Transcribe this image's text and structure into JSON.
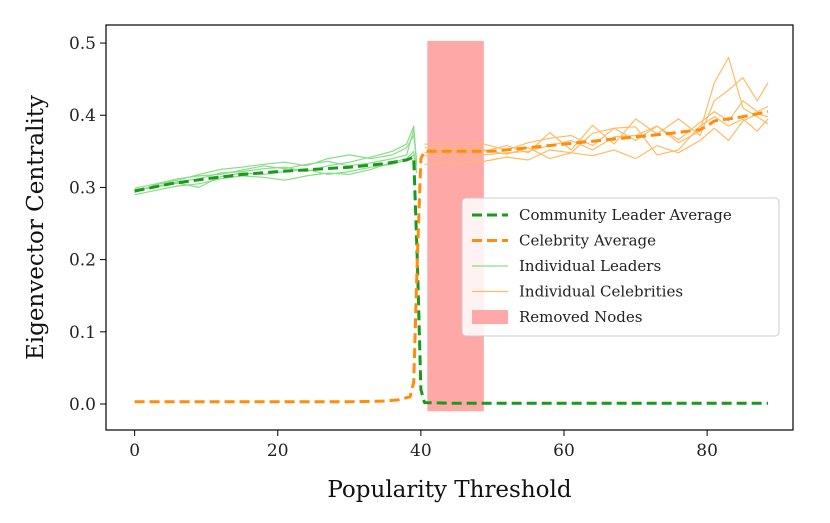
{
  "chart_data": {
    "type": "line",
    "title": "",
    "xlabel": "Popularity Threshold",
    "ylabel": "Eigenvector Centrality",
    "xlim": [
      -4,
      92
    ],
    "ylim": [
      -0.036,
      0.525
    ],
    "xticks": [
      0,
      20,
      40,
      60,
      80
    ],
    "yticks": [
      0.0,
      0.1,
      0.2,
      0.3,
      0.4,
      0.5
    ],
    "xtick_labels": [
      "0",
      "20",
      "40",
      "60",
      "80"
    ],
    "ytick_labels": [
      "0.0",
      "0.1",
      "0.2",
      "0.3",
      "0.4",
      "0.5"
    ],
    "grid": false,
    "legend_position": "center-right",
    "removed_region": {
      "name": "Removed Nodes",
      "x0": 40.9,
      "x1": 48.8,
      "y0": -0.01,
      "y1": 0.503,
      "color": "#ffa8a8"
    },
    "series": [
      {
        "name": "Community Leader Average",
        "style": "dashed",
        "color": "#1a9a1a",
        "width": 3,
        "points": [
          [
            0,
            0.295
          ],
          [
            5,
            0.305
          ],
          [
            10,
            0.312
          ],
          [
            15,
            0.318
          ],
          [
            20,
            0.322
          ],
          [
            25,
            0.325
          ],
          [
            30,
            0.328
          ],
          [
            35,
            0.333
          ],
          [
            38,
            0.338
          ],
          [
            39,
            0.342
          ],
          [
            39.5,
            0.2
          ],
          [
            40,
            0.02
          ],
          [
            40.5,
            0.002
          ],
          [
            45,
            0.001
          ],
          [
            60,
            0.001
          ],
          [
            80,
            0.001
          ],
          [
            88.5,
            0.001
          ]
        ]
      },
      {
        "name": "Celebrity Average",
        "style": "dashed",
        "color": "#ff8c0a",
        "width": 3,
        "points": [
          [
            0,
            0.003
          ],
          [
            10,
            0.003
          ],
          [
            20,
            0.003
          ],
          [
            30,
            0.003
          ],
          [
            35,
            0.004
          ],
          [
            37,
            0.006
          ],
          [
            38.5,
            0.01
          ],
          [
            39,
            0.03
          ],
          [
            39.5,
            0.2
          ],
          [
            40,
            0.34
          ],
          [
            40.5,
            0.35
          ],
          [
            45,
            0.35
          ],
          [
            50,
            0.35
          ],
          [
            55,
            0.355
          ],
          [
            60,
            0.36
          ],
          [
            65,
            0.365
          ],
          [
            70,
            0.37
          ],
          [
            75,
            0.375
          ],
          [
            79,
            0.38
          ],
          [
            80,
            0.385
          ],
          [
            81,
            0.392
          ],
          [
            85,
            0.398
          ],
          [
            88.5,
            0.405
          ]
        ]
      },
      {
        "name": "Individual Leaders",
        "style": "solid",
        "color": "#88dd88",
        "width": 1.2,
        "lines": [
          [
            [
              0,
              0.297
            ],
            [
              3,
              0.3
            ],
            [
              6,
              0.308
            ],
            [
              9,
              0.312
            ],
            [
              12,
              0.32
            ],
            [
              15,
              0.322
            ],
            [
              18,
              0.326
            ],
            [
              21,
              0.328
            ],
            [
              24,
              0.322
            ],
            [
              27,
              0.33
            ],
            [
              30,
              0.335
            ],
            [
              33,
              0.342
            ],
            [
              36,
              0.35
            ],
            [
              38,
              0.36
            ],
            [
              39,
              0.385
            ],
            [
              39.4,
              0.33
            ]
          ],
          [
            [
              0,
              0.293
            ],
            [
              3,
              0.304
            ],
            [
              6,
              0.31
            ],
            [
              9,
              0.318
            ],
            [
              12,
              0.325
            ],
            [
              15,
              0.328
            ],
            [
              18,
              0.332
            ],
            [
              21,
              0.335
            ],
            [
              24,
              0.33
            ],
            [
              27,
              0.34
            ],
            [
              30,
              0.345
            ],
            [
              33,
              0.34
            ],
            [
              36,
              0.345
            ],
            [
              38,
              0.355
            ],
            [
              39,
              0.372
            ],
            [
              39.4,
              0.34
            ]
          ],
          [
            [
              0,
              0.29
            ],
            [
              3,
              0.296
            ],
            [
              6,
              0.302
            ],
            [
              9,
              0.305
            ],
            [
              12,
              0.312
            ],
            [
              15,
              0.316
            ],
            [
              18,
              0.314
            ],
            [
              21,
              0.31
            ],
            [
              24,
              0.316
            ],
            [
              27,
              0.32
            ],
            [
              30,
              0.318
            ],
            [
              33,
              0.325
            ],
            [
              36,
              0.335
            ],
            [
              38,
              0.34
            ],
            [
              39,
              0.35
            ],
            [
              39.4,
              0.32
            ]
          ],
          [
            [
              0,
              0.296
            ],
            [
              3,
              0.302
            ],
            [
              6,
              0.306
            ],
            [
              9,
              0.3
            ],
            [
              12,
              0.315
            ],
            [
              15,
              0.32
            ],
            [
              18,
              0.318
            ],
            [
              21,
              0.322
            ],
            [
              24,
              0.325
            ],
            [
              27,
              0.318
            ],
            [
              30,
              0.322
            ],
            [
              33,
              0.328
            ],
            [
              36,
              0.332
            ],
            [
              38,
              0.338
            ],
            [
              39,
              0.345
            ],
            [
              39.4,
              0.325
            ]
          ],
          [
            [
              0,
              0.299
            ],
            [
              3,
              0.305
            ],
            [
              6,
              0.312
            ],
            [
              9,
              0.316
            ],
            [
              12,
              0.318
            ],
            [
              15,
              0.324
            ],
            [
              18,
              0.33
            ],
            [
              21,
              0.326
            ],
            [
              24,
              0.332
            ],
            [
              27,
              0.336
            ],
            [
              30,
              0.33
            ],
            [
              33,
              0.334
            ],
            [
              36,
              0.34
            ],
            [
              38,
              0.345
            ],
            [
              39,
              0.38
            ],
            [
              39.4,
              0.335
            ]
          ]
        ]
      },
      {
        "name": "Individual Celebrities",
        "style": "solid",
        "color": "#ffbb66",
        "width": 1.2,
        "lines": [
          [
            [
              40.5,
              0.36
            ],
            [
              48.8,
              0.36
            ],
            [
              52,
              0.352
            ],
            [
              55,
              0.362
            ],
            [
              58,
              0.368
            ],
            [
              61,
              0.372
            ],
            [
              64,
              0.358
            ],
            [
              67,
              0.382
            ],
            [
              70,
              0.365
            ],
            [
              73,
              0.385
            ],
            [
              76,
              0.362
            ],
            [
              79,
              0.378
            ],
            [
              81,
              0.445
            ],
            [
              83,
              0.48
            ],
            [
              85,
              0.41
            ],
            [
              87,
              0.398
            ],
            [
              88.5,
              0.388
            ]
          ],
          [
            [
              40.5,
              0.348
            ],
            [
              48.8,
              0.35
            ],
            [
              52,
              0.358
            ],
            [
              55,
              0.348
            ],
            [
              58,
              0.376
            ],
            [
              61,
              0.352
            ],
            [
              64,
              0.386
            ],
            [
              67,
              0.36
            ],
            [
              70,
              0.395
            ],
            [
              73,
              0.374
            ],
            [
              76,
              0.395
            ],
            [
              79,
              0.372
            ],
            [
              81,
              0.42
            ],
            [
              83,
              0.435
            ],
            [
              85,
              0.452
            ],
            [
              87,
              0.42
            ],
            [
              88.5,
              0.445
            ]
          ],
          [
            [
              40.5,
              0.332
            ],
            [
              48.8,
              0.336
            ],
            [
              52,
              0.342
            ],
            [
              55,
              0.338
            ],
            [
              58,
              0.352
            ],
            [
              61,
              0.348
            ],
            [
              64,
              0.344
            ],
            [
              67,
              0.352
            ],
            [
              70,
              0.34
            ],
            [
              73,
              0.358
            ],
            [
              76,
              0.348
            ],
            [
              79,
              0.365
            ],
            [
              81,
              0.382
            ],
            [
              83,
              0.365
            ],
            [
              85,
              0.392
            ],
            [
              87,
              0.402
            ],
            [
              88.5,
              0.398
            ]
          ],
          [
            [
              40.5,
              0.355
            ],
            [
              48.8,
              0.352
            ],
            [
              52,
              0.346
            ],
            [
              55,
              0.355
            ],
            [
              58,
              0.34
            ],
            [
              61,
              0.348
            ],
            [
              64,
              0.375
            ],
            [
              67,
              0.382
            ],
            [
              70,
              0.384
            ],
            [
              73,
              0.345
            ],
            [
              76,
              0.352
            ],
            [
              79,
              0.385
            ],
            [
              81,
              0.398
            ],
            [
              83,
              0.385
            ],
            [
              85,
              0.395
            ],
            [
              87,
              0.378
            ],
            [
              88.5,
              0.395
            ]
          ],
          [
            [
              40.5,
              0.344
            ],
            [
              48.8,
              0.345
            ],
            [
              52,
              0.348
            ],
            [
              55,
              0.35
            ],
            [
              58,
              0.358
            ],
            [
              61,
              0.365
            ],
            [
              64,
              0.352
            ],
            [
              67,
              0.37
            ],
            [
              70,
              0.372
            ],
            [
              73,
              0.385
            ],
            [
              76,
              0.366
            ],
            [
              79,
              0.39
            ],
            [
              81,
              0.405
            ],
            [
              83,
              0.392
            ],
            [
              85,
              0.42
            ],
            [
              87,
              0.405
            ],
            [
              88.5,
              0.412
            ]
          ]
        ]
      }
    ],
    "legend": [
      {
        "label": "Community Leader Average",
        "kind": "dashed",
        "color": "#1a9a1a"
      },
      {
        "label": "Celebrity Average",
        "kind": "dashed",
        "color": "#ff8c0a"
      },
      {
        "label": "Individual Leaders",
        "kind": "solid",
        "color": "#88dd88"
      },
      {
        "label": "Individual Celebrities",
        "kind": "solid",
        "color": "#ffbb66"
      },
      {
        "label": "Removed Nodes",
        "kind": "patch",
        "color": "#ffa8a8"
      }
    ]
  }
}
